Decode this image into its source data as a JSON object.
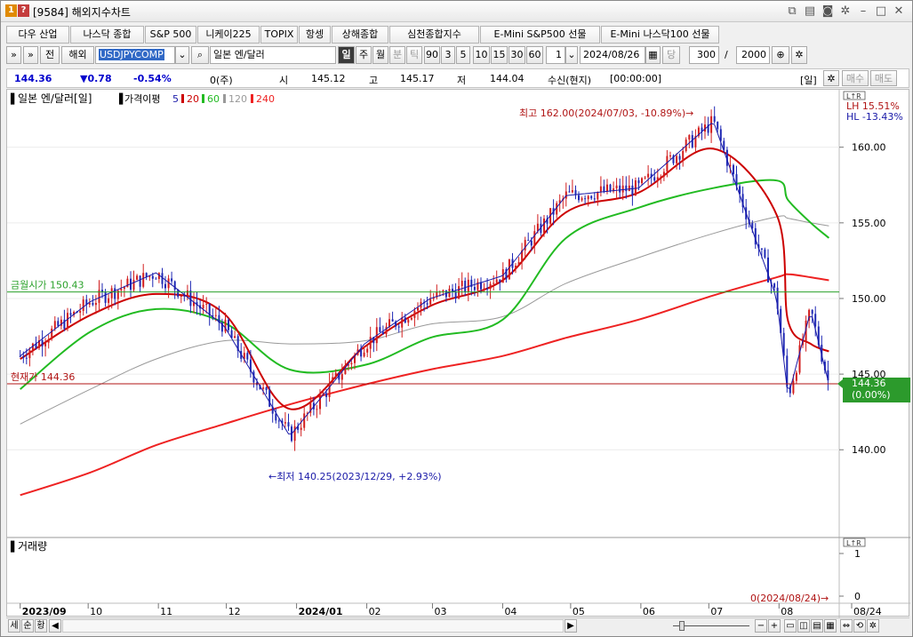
{
  "window": {
    "number_badge": "1",
    "question_badge": "?",
    "title": "[9584] 해외지수차트"
  },
  "tabs": [
    "다우 산업",
    "나스닥 종합",
    "S&P 500",
    "니케이225",
    "TOPIX",
    "항셍",
    "상해종합",
    "심천종합지수",
    "E-Mini S&P500 선물",
    "E-Mini 나스닥100 선물"
  ],
  "toolbar": {
    "market_label": "전",
    "overseas_label": "해외",
    "symbol_code": "USDJPYCOMP",
    "symbol_name": "일본 엔/달러",
    "period_day": "일",
    "period_week": "주",
    "period_month": "월",
    "period_min": "분",
    "period_tick": "틱",
    "intervals": [
      "90",
      "3",
      "5",
      "10",
      "15",
      "30",
      "60"
    ],
    "unit_value": "1",
    "date": "2024/08/26",
    "today_label": "당",
    "count": "300",
    "slash": "/",
    "max_count": "2000"
  },
  "quote": {
    "price": "144.36",
    "change": "▼0.78",
    "change_pct": "-0.54%",
    "volume": "0(주)",
    "open_label": "시",
    "open": "145.12",
    "high_label": "고",
    "high": "145.17",
    "low_label": "저",
    "low": "144.04",
    "receive_label": "수신(현지)",
    "receive_time": "[00:00:00]",
    "period_tag": "[일]",
    "buy_label": "매수",
    "sell_label": "매도"
  },
  "chart_data": {
    "type": "line",
    "title": "일본 엔/달러[일]",
    "ma_label": "가격이평",
    "ma_periods": [
      {
        "period": "5",
        "color": "#1a1aa8"
      },
      {
        "period": "20",
        "color": "#cc0000"
      },
      {
        "period": "60",
        "color": "#22bb22"
      },
      {
        "period": "120",
        "color": "#999999"
      },
      {
        "period": "240",
        "color": "#ee2222"
      }
    ],
    "y_ticks": [
      "160.00",
      "155.00",
      "150.00",
      "145.00",
      "140.00"
    ],
    "ylim": [
      134.2,
      163.8
    ],
    "x_ticks": [
      "2023/09",
      "10",
      "11",
      "12",
      "2024/01",
      "02",
      "03",
      "04",
      "05",
      "06",
      "07",
      "08",
      "08/24"
    ],
    "lh_label": "LH  15.51%",
    "hl_label": "HL -13.43%",
    "high_annotation": "최고 162.00(2024/07/03, -10.89%)→",
    "low_annotation": "←최저 140.25(2023/12/29, +2.93%)",
    "month_open_label": "금월시가 150.43",
    "month_open": 150.43,
    "current_label": "현재가 144.36",
    "current": 144.36,
    "current_badge_price": "144.36",
    "current_badge_pct": "(0.00%)",
    "volume_title": "거래량",
    "volume_ticks": [
      "1",
      "0"
    ],
    "volume_annotation": "0(2024/08/24)→",
    "key_points": [
      {
        "date": "2023/09/01",
        "close": 146.2
      },
      {
        "date": "2023/10/02",
        "close": 149.8
      },
      {
        "date": "2023/10/31",
        "close": 151.7
      },
      {
        "date": "2023/11/30",
        "close": 148.2
      },
      {
        "date": "2023/12/29",
        "close": 140.9
      },
      {
        "date": "2024/01/31",
        "close": 147.0
      },
      {
        "date": "2024/02/29",
        "close": 150.0
      },
      {
        "date": "2024/04/01",
        "close": 151.5
      },
      {
        "date": "2024/04/29",
        "close": 156.8
      },
      {
        "date": "2024/05/31",
        "close": 157.3
      },
      {
        "date": "2024/07/03",
        "close": 161.7
      },
      {
        "date": "2024/07/31",
        "close": 150.0
      },
      {
        "date": "2024/08/05",
        "close": 143.5
      },
      {
        "date": "2024/08/15",
        "close": 149.2
      },
      {
        "date": "2024/08/23",
        "close": 144.36
      }
    ],
    "ma20": [
      146.0,
      148.9,
      150.3,
      149.0,
      142.7,
      146.8,
      149.5,
      151.2,
      155.7,
      157.0,
      159.9,
      155.5,
      148.5,
      147.0,
      146.5
    ],
    "ma60": [
      144.0,
      147.8,
      149.3,
      148.4,
      145.3,
      145.6,
      147.4,
      148.6,
      154.0,
      156.0,
      157.3,
      157.8,
      156.5,
      155.0,
      154.0
    ],
    "ma120": [
      141.7,
      144.0,
      146.0,
      147.2,
      147.0,
      147.2,
      148.3,
      148.8,
      151.0,
      152.7,
      154.3,
      155.4,
      155.3,
      155.0,
      154.8
    ],
    "ma240": [
      137.0,
      138.5,
      140.3,
      141.7,
      143.0,
      144.3,
      145.3,
      146.2,
      147.4,
      148.6,
      150.2,
      151.4,
      151.6,
      151.4,
      151.2
    ]
  },
  "bottombar": {
    "btn1": "세",
    "btn2": "순",
    "btn3": "황",
    "scroll_left": "◀",
    "scroll_right": "▶"
  }
}
